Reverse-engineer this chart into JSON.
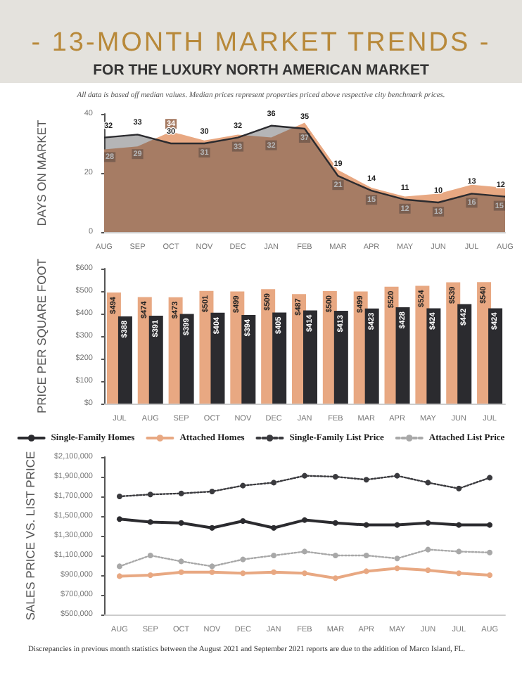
{
  "chart_data": [
    {
      "type": "area",
      "title": "- 13-MONTH MARKET TRENDS -",
      "subtitle": "FOR THE LUXURY NORTH AMERICAN MARKET",
      "annotations": [
        "All data is based off median values. Median prices represent properties priced above respective city benchmark prices."
      ],
      "ylabel": "DAYS ON MARKET",
      "categories": [
        "AUG",
        "SEP",
        "OCT",
        "NOV",
        "DEC",
        "JAN",
        "FEB",
        "MAR",
        "APR",
        "MAY",
        "JUN",
        "JUL",
        "AUG"
      ],
      "ylim": [
        0,
        40
      ],
      "yticks": [
        0,
        20,
        40
      ],
      "data_labels": true,
      "series": [
        {
          "color": "#2b2b2f",
          "values": [
            32,
            33,
            30,
            30,
            32,
            36,
            35,
            19,
            14,
            11,
            10,
            13,
            12
          ]
        },
        {
          "color": "#e8a882",
          "values": [
            28,
            29,
            34,
            31,
            33,
            32,
            37,
            21,
            15,
            12,
            13,
            16,
            15
          ]
        }
      ]
    },
    {
      "type": "bar",
      "ylabel": "PRICE PER SQUARE FOOT",
      "categories": [
        "JUL",
        "AUG",
        "SEP",
        "OCT",
        "NOV",
        "DEC",
        "JAN",
        "FEB",
        "MAR",
        "APR",
        "MAY",
        "JUN",
        "JUL"
      ],
      "ylim": [
        0,
        600
      ],
      "yticks": [
        {
          "value": 0,
          "label": "$0"
        },
        {
          "value": 100,
          "label": "$100"
        },
        {
          "value": 200,
          "label": "$200"
        },
        {
          "value": 300,
          "label": "$300"
        },
        {
          "value": 400,
          "label": "$400"
        },
        {
          "value": 500,
          "label": "$500"
        },
        {
          "value": 600,
          "label": "$600"
        }
      ],
      "series": [
        {
          "color": "#e8a882",
          "values": [
            494,
            474,
            473,
            501,
            499,
            509,
            487,
            500,
            499,
            520,
            524,
            539,
            540
          ],
          "value_labels": [
            "$494",
            "$474",
            "$473",
            "$501",
            "$499",
            "$509",
            "$487",
            "$500",
            "$499",
            "$520",
            "$524",
            "$539",
            "$540"
          ]
        },
        {
          "color": "#2b2b2f",
          "values": [
            388,
            391,
            399,
            404,
            394,
            405,
            414,
            413,
            423,
            428,
            424,
            442,
            424
          ],
          "value_labels": [
            "$388",
            "$391",
            "$399",
            "$404",
            "$394",
            "$405",
            "$414",
            "$413",
            "$423",
            "$428",
            "$424",
            "$442",
            "$424"
          ]
        }
      ]
    },
    {
      "type": "line",
      "ylabel": "SALES PRICE VS. LIST PRICE",
      "legend": "top",
      "marker": "circle",
      "annotations": [
        "Discrepancies in previous month statistics between the August 2021 and September 2021 reports are due to the addition of Marco Island, FL."
      ],
      "categories": [
        "AUG",
        "SEP",
        "OCT",
        "NOV",
        "DEC",
        "JAN",
        "FEB",
        "MAR",
        "APR",
        "MAY",
        "JUN",
        "JUL",
        "AUG"
      ],
      "ylim": [
        500000,
        2100000
      ],
      "yticks": [
        {
          "value": 500000,
          "label": "$500,000"
        },
        {
          "value": 700000,
          "label": "$700,000"
        },
        {
          "value": 900000,
          "label": "$900,000"
        },
        {
          "value": 1100000,
          "label": "$1,100,000"
        },
        {
          "value": 1300000,
          "label": "$1,300,000"
        },
        {
          "value": 1500000,
          "label": "$1,500,000"
        },
        {
          "value": 1700000,
          "label": "$1,700,000"
        },
        {
          "value": 1900000,
          "label": "$1,900,000"
        },
        {
          "value": 2100000,
          "label": "$2,100,000"
        }
      ],
      "series": [
        {
          "name": "Single-Family Homes",
          "color": "#2b2b2f",
          "line_style": "solid",
          "values": [
            1470000,
            1440000,
            1430000,
            1380000,
            1450000,
            1380000,
            1460000,
            1430000,
            1410000,
            1410000,
            1430000,
            1410000,
            1410000
          ]
        },
        {
          "name": "Attached Homes",
          "color": "#e8a882",
          "line_style": "solid",
          "values": [
            890000,
            900000,
            930000,
            930000,
            920000,
            930000,
            920000,
            870000,
            940000,
            970000,
            950000,
            920000,
            900000
          ]
        },
        {
          "name": "Single-Family List Price",
          "color": "#3a3a3e",
          "line_style": "dotted",
          "values": [
            1700000,
            1720000,
            1730000,
            1750000,
            1810000,
            1840000,
            1910000,
            1900000,
            1870000,
            1910000,
            1840000,
            1780000,
            1890000
          ]
        },
        {
          "name": "Attached List Price",
          "color": "#a8a8a8",
          "line_style": "dotted",
          "values": [
            990000,
            1100000,
            1040000,
            990000,
            1060000,
            1100000,
            1140000,
            1100000,
            1100000,
            1070000,
            1160000,
            1140000,
            1130000
          ]
        }
      ]
    }
  ]
}
